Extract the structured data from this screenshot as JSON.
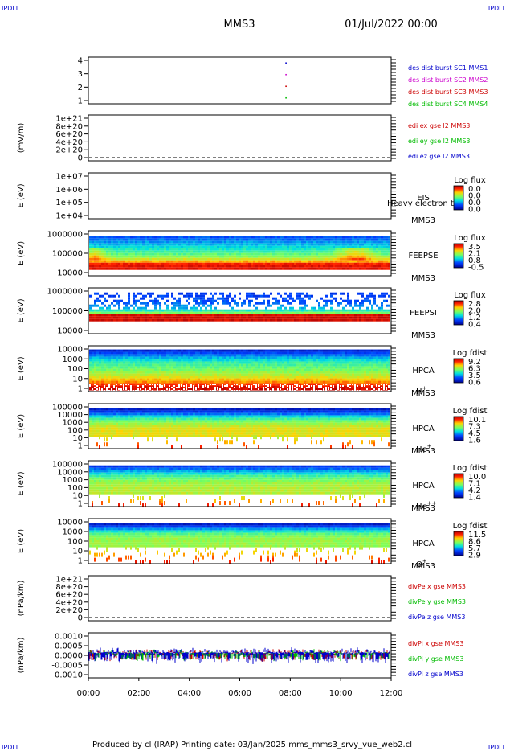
{
  "corners": {
    "top_left": "IPDLI",
    "top_right": "IPDLI",
    "bottom_left": "IPDLI",
    "bottom_right": "IPDLI"
  },
  "header": {
    "title": "MMS3",
    "date": "01/Jul/2022 00:00"
  },
  "footer": {
    "text": "Produced by cl (IRAP)   Printing date: 03/Jan/2025   mms_mms3_srvy_vue_web2.cl"
  },
  "time_axis": {
    "ticks": [
      "00:00",
      "02:00",
      "04:00",
      "06:00",
      "08:00",
      "10:00",
      "12:00"
    ]
  },
  "chart_data": [
    {
      "type": "scatter",
      "ylabel": "",
      "yticks": [
        "4",
        "3",
        "2",
        "1"
      ],
      "ylim": [
        0.5,
        4.5
      ],
      "legend": [
        {
          "text": "des dist burst SC1 MMS1",
          "color": "#0000cc"
        },
        {
          "text": "des dist burst SC2 MMS2",
          "color": "#cc00cc"
        },
        {
          "text": "des dist burst SC3 MMS3",
          "color": "#cc0000"
        },
        {
          "text": "des dist burst SC4 MMS4",
          "color": "#00bb00"
        }
      ],
      "points": [
        {
          "x": "07:50",
          "y": 4
        },
        {
          "x": "07:50",
          "y": 3
        },
        {
          "x": "07:50",
          "y": 2
        },
        {
          "x": "07:50",
          "y": 1
        }
      ]
    },
    {
      "type": "line",
      "ylabel": "(mV/m)",
      "yticks": [
        "1e+21",
        "8e+20",
        "6e+20",
        "4e+20",
        "2e+20",
        "0"
      ],
      "ylim": [
        0,
        1e+21
      ],
      "zero_line": true,
      "legend": [
        {
          "text": "edi ex gse l2 MMS3",
          "color": "#cc0000"
        },
        {
          "text": "edi ey gse l2 MMS3",
          "color": "#00bb00"
        },
        {
          "text": "edi ez gse l2 MMS3",
          "color": "#0000cc"
        }
      ]
    },
    {
      "type": "heatmap",
      "ylabel": "E (eV)",
      "yticks": [
        "1e+07",
        "1e+06",
        "1e+05",
        "1e+04"
      ],
      "labels": [
        "EIS",
        "MMS3"
      ],
      "overlay_text": "Heavy electron to",
      "colorbar": {
        "title": "Log flux",
        "ticks": [
          "0.0",
          "0.0",
          "0.0",
          "0.0"
        ]
      }
    },
    {
      "type": "heatmap",
      "ylabel": "E (eV)",
      "yticks": [
        "1000000",
        "100000",
        "10000"
      ],
      "labels": [
        "FEEPSE",
        "MMS3"
      ],
      "colorbar": {
        "title": "Log flux",
        "ticks": [
          "3.5",
          "2.1",
          "0.8",
          "-0.5"
        ]
      }
    },
    {
      "type": "heatmap",
      "ylabel": "E (eV)",
      "yticks": [
        "1000000",
        "100000",
        "10000"
      ],
      "labels": [
        "FEEPSI",
        "MMS3"
      ],
      "colorbar": {
        "title": "Log flux",
        "ticks": [
          "2.8",
          "2.0",
          "1.2",
          "0.4"
        ]
      }
    },
    {
      "type": "heatmap",
      "ylabel": "E (eV)",
      "yticks": [
        "10000",
        "1000",
        "100",
        "10",
        "1"
      ],
      "labels": [
        "HPCA",
        "MMS3"
      ],
      "species": {
        "base": "H",
        "sup": "+"
      },
      "colorbar": {
        "title": "Log fdist",
        "ticks": [
          "9.2",
          "6.3",
          "3.5",
          "0.6"
        ]
      }
    },
    {
      "type": "heatmap",
      "ylabel": "E (eV)",
      "yticks": [
        "100000",
        "10000",
        "1000",
        "100",
        "10",
        "1"
      ],
      "labels": [
        "HPCA",
        "MMS3"
      ],
      "species": {
        "base": "He",
        "sup": "+"
      },
      "colorbar": {
        "title": "Log fdist",
        "ticks": [
          "10.1",
          "7.3",
          "4.5",
          "1.6"
        ]
      }
    },
    {
      "type": "heatmap",
      "ylabel": "E (eV)",
      "yticks": [
        "100000",
        "10000",
        "1000",
        "100",
        "10",
        "1"
      ],
      "labels": [
        "HPCA",
        "MMS3"
      ],
      "species": {
        "base": "He",
        "sup": "++"
      },
      "colorbar": {
        "title": "Log fdist",
        "ticks": [
          "10.0",
          "7.1",
          "4.2",
          "1.4"
        ]
      }
    },
    {
      "type": "heatmap",
      "ylabel": "E (eV)",
      "yticks": [
        "10000",
        "1000",
        "100",
        "10",
        "1"
      ],
      "labels": [
        "HPCA",
        "MMS3"
      ],
      "species": {
        "base": "O",
        "sup": "+"
      },
      "colorbar": {
        "title": "Log fdist",
        "ticks": [
          "11.5",
          "8.6",
          "5.7",
          "2.9"
        ]
      }
    },
    {
      "type": "line",
      "ylabel": "(nPa/km)",
      "yticks": [
        "1e+21",
        "8e+20",
        "6e+20",
        "4e+20",
        "2e+20",
        "0"
      ],
      "ylim": [
        0,
        1e+21
      ],
      "zero_line": true,
      "legend": [
        {
          "text": "divPe x gse MMS3",
          "color": "#cc0000"
        },
        {
          "text": "divPe y gse MMS3",
          "color": "#00bb00"
        },
        {
          "text": "divPe z gse MMS3",
          "color": "#0000cc"
        }
      ]
    },
    {
      "type": "line",
      "ylabel": "(nPa/km)",
      "yticks": [
        "0.0010",
        "0.0005",
        "0.0000",
        "-0.0005",
        "-0.0010"
      ],
      "ylim": [
        -0.0012,
        0.0012
      ],
      "legend": [
        {
          "text": "divPi x gse MMS3",
          "color": "#cc0000"
        },
        {
          "text": "divPi y gse MMS3",
          "color": "#00bb00"
        },
        {
          "text": "divPi z gse MMS3",
          "color": "#0000cc"
        }
      ]
    }
  ]
}
